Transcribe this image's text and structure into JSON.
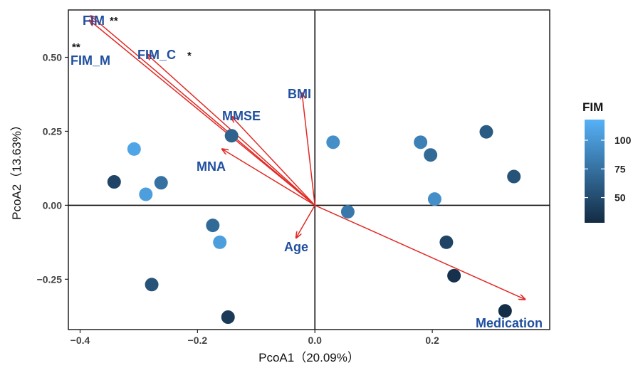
{
  "chart_data": {
    "type": "scatter",
    "xlabel": "PcoA1（20.09%）",
    "ylabel": "PcoA2（13.63%）",
    "xlim": [
      -0.42,
      0.4
    ],
    "ylim": [
      -0.42,
      0.66
    ],
    "x_ticks": [
      -0.4,
      -0.2,
      0.0,
      0.2
    ],
    "x_tick_labels": [
      "-0.4",
      "-0.2",
      "0.0",
      "0.2"
    ],
    "y_ticks": [
      -0.25,
      0.0,
      0.25,
      0.5
    ],
    "y_tick_labels": [
      "-0.25",
      "0.00",
      "0.25",
      "0.50"
    ],
    "grid": false,
    "reference_lines": [
      0,
      0
    ],
    "points": [
      {
        "x": -0.308,
        "y": 0.19,
        "fim": 110
      },
      {
        "x": -0.342,
        "y": 0.079,
        "fim": 45
      },
      {
        "x": -0.288,
        "y": 0.037,
        "fim": 105
      },
      {
        "x": -0.262,
        "y": 0.076,
        "fim": 75
      },
      {
        "x": -0.142,
        "y": 0.235,
        "fim": 65
      },
      {
        "x": -0.174,
        "y": -0.068,
        "fim": 70
      },
      {
        "x": -0.162,
        "y": -0.125,
        "fim": 105
      },
      {
        "x": -0.278,
        "y": -0.268,
        "fim": 55
      },
      {
        "x": -0.148,
        "y": -0.378,
        "fim": 38
      },
      {
        "x": 0.031,
        "y": 0.213,
        "fim": 95
      },
      {
        "x": 0.056,
        "y": -0.022,
        "fim": 80
      },
      {
        "x": 0.18,
        "y": 0.213,
        "fim": 85
      },
      {
        "x": 0.197,
        "y": 0.17,
        "fim": 70
      },
      {
        "x": 0.204,
        "y": 0.021,
        "fim": 95
      },
      {
        "x": 0.292,
        "y": 0.248,
        "fim": 60
      },
      {
        "x": 0.339,
        "y": 0.097,
        "fim": 55
      },
      {
        "x": 0.224,
        "y": -0.125,
        "fim": 45
      },
      {
        "x": 0.237,
        "y": -0.238,
        "fim": 32
      },
      {
        "x": 0.324,
        "y": -0.357,
        "fim": 30
      }
    ],
    "arrows": [
      {
        "label": "FIM",
        "x": -0.382,
        "y": 0.64,
        "stars": "**"
      },
      {
        "label": "FIM_M",
        "x": -0.384,
        "y": 0.625,
        "stars": "**"
      },
      {
        "label": "FIM_C",
        "x": -0.286,
        "y": 0.51,
        "stars": "*"
      },
      {
        "label": "BMI",
        "x": -0.022,
        "y": 0.38,
        "stars": ""
      },
      {
        "label": "MMSE",
        "x": -0.142,
        "y": 0.3,
        "stars": ""
      },
      {
        "label": "MNA",
        "x": -0.158,
        "y": 0.19,
        "stars": ""
      },
      {
        "label": "Age",
        "x": -0.032,
        "y": -0.11,
        "stars": ""
      },
      {
        "label": "Medication",
        "x": 0.358,
        "y": -0.318,
        "stars": ""
      }
    ],
    "legend": {
      "title": "FIM",
      "position": "right",
      "range": [
        28,
        118
      ],
      "ticks": [
        50,
        75,
        100
      ],
      "tick_labels": [
        "50",
        "75",
        "100"
      ],
      "low_color": "#132b43",
      "high_color": "#56b1f7"
    },
    "arrow_color": "#e02a25",
    "label_color": "#2050a0"
  }
}
